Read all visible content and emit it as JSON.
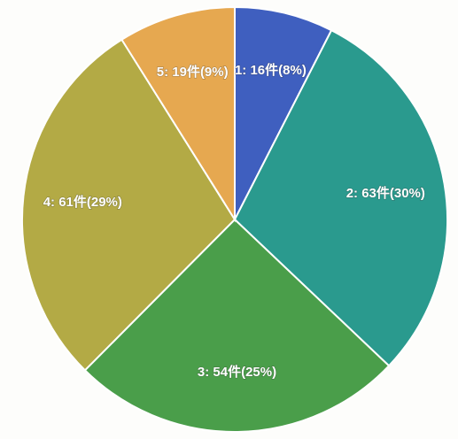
{
  "chart_data": {
    "type": "pie",
    "title": "",
    "start_angle_deg": 0,
    "direction": "clockwise",
    "colors": {
      "border": "#ffffff"
    },
    "slices": [
      {
        "category": "1",
        "value": 16,
        "percent": 8,
        "label": "1: 16件(8%)",
        "color": "#3f5fbf"
      },
      {
        "category": "2",
        "value": 63,
        "percent": 30,
        "label": "2: 63件(30%)",
        "color": "#2a9a8e"
      },
      {
        "category": "3",
        "value": 54,
        "percent": 25,
        "label": "3: 54件(25%)",
        "color": "#4a9e4a"
      },
      {
        "category": "4",
        "value": 61,
        "percent": 29,
        "label": "4: 61件(29%)",
        "color": "#b3aa45"
      },
      {
        "category": "5",
        "value": 19,
        "percent": 9,
        "label": "5: 19件(9%)",
        "color": "#e6a850"
      }
    ]
  }
}
